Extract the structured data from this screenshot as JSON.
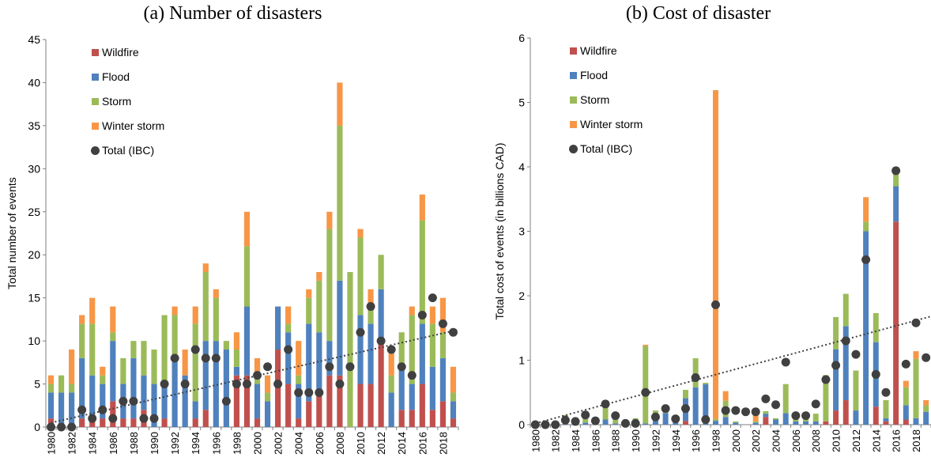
{
  "colors": {
    "wildfire": "#c0504d",
    "flood": "#4f81bd",
    "storm": "#9bbb59",
    "winter_storm": "#f79646",
    "total": "#404040"
  },
  "chart_data": [
    {
      "type": "bar",
      "stacked": true,
      "title": "(a) Number of disasters",
      "xlabel": "",
      "ylabel": "Total number of events",
      "ylim": [
        0,
        45
      ],
      "yticks": [
        0,
        5,
        10,
        15,
        20,
        25,
        30,
        35,
        40,
        45
      ],
      "categories": [
        "1980",
        "1981",
        "1982",
        "1983",
        "1984",
        "1985",
        "1986",
        "1987",
        "1988",
        "1989",
        "1990",
        "1991",
        "1992",
        "1993",
        "1994",
        "1995",
        "1996",
        "1997",
        "1998",
        "1999",
        "2000",
        "2001",
        "2002",
        "2003",
        "2004",
        "2005",
        "2006",
        "2007",
        "2008",
        "2009",
        "2010",
        "2011",
        "2012",
        "2013",
        "2014",
        "2015",
        "2016",
        "2017",
        "2018",
        "2019"
      ],
      "tick_labels": [
        "1980",
        "1982",
        "1984",
        "1986",
        "1988",
        "1990",
        "1992",
        "1994",
        "1996",
        "1998",
        "2000",
        "2002",
        "2004",
        "2006",
        "2008",
        "2010",
        "2012",
        "2014",
        "2016",
        "2018"
      ],
      "legend_position": "top-left",
      "series": [
        {
          "name": "Wildfire",
          "key": "wildfire",
          "values": [
            1,
            0,
            0,
            1,
            1,
            1,
            3,
            1,
            1,
            2,
            0,
            1,
            0,
            0,
            1,
            2,
            0,
            0,
            6,
            6,
            1,
            0,
            9,
            5,
            1,
            3,
            4,
            6,
            6,
            0,
            5,
            5,
            10,
            0,
            2,
            2,
            5,
            2,
            3,
            1
          ]
        },
        {
          "name": "Flood",
          "key": "flood",
          "values": [
            3,
            4,
            4,
            7,
            5,
            4,
            7,
            4,
            7,
            4,
            5,
            4,
            8,
            6,
            2,
            8,
            10,
            9,
            1,
            8,
            4,
            3,
            5,
            6,
            4,
            9,
            7,
            4,
            11,
            0,
            8,
            7,
            6,
            4,
            5,
            3,
            7,
            5,
            5,
            2
          ]
        },
        {
          "name": "Storm",
          "key": "storm",
          "values": [
            1,
            2,
            1,
            4,
            6,
            1,
            1,
            3,
            2,
            4,
            4,
            8,
            5,
            0,
            9,
            8,
            5,
            1,
            2,
            7,
            1,
            1,
            0,
            1,
            1,
            3,
            6,
            13,
            18,
            18,
            9,
            2,
            4,
            2,
            4,
            8,
            12,
            5,
            3,
            1
          ]
        },
        {
          "name": "Winter storm",
          "key": "winter_storm",
          "values": [
            1,
            0,
            4,
            1,
            3,
            1,
            3,
            0,
            0,
            0,
            0,
            0,
            1,
            3,
            2,
            1,
            1,
            0,
            2,
            4,
            2,
            2,
            0,
            2,
            4,
            1,
            1,
            2,
            5,
            0,
            1,
            2,
            0,
            3,
            0,
            1,
            3,
            2,
            4,
            3
          ]
        }
      ],
      "total_ibc": {
        "name": "Total (IBC)",
        "values": [
          0,
          0,
          0,
          2,
          1,
          2,
          1,
          3,
          3,
          1,
          1,
          5,
          8,
          5,
          9,
          8,
          8,
          3,
          5,
          5,
          6,
          7,
          5,
          9,
          4,
          4,
          4,
          7,
          5,
          7,
          11,
          14,
          10,
          9,
          7,
          6,
          13,
          15,
          12,
          11
        ]
      },
      "trendline": {
        "start": 0.5,
        "end": 11.3
      }
    },
    {
      "type": "bar",
      "stacked": true,
      "title": "(b) Cost of disaster",
      "xlabel": "",
      "ylabel": "Total cost of events (in billions CAD)",
      "ylim": [
        0,
        6
      ],
      "yticks": [
        0,
        1,
        2,
        3,
        4,
        5,
        6
      ],
      "categories": [
        "1980",
        "1981",
        "1982",
        "1983",
        "1984",
        "1985",
        "1986",
        "1987",
        "1988",
        "1989",
        "1990",
        "1991",
        "1992",
        "1993",
        "1994",
        "1995",
        "1996",
        "1997",
        "1998",
        "1999",
        "2000",
        "2001",
        "2002",
        "2003",
        "2004",
        "2005",
        "2006",
        "2007",
        "2008",
        "2009",
        "2010",
        "2011",
        "2012",
        "2013",
        "2014",
        "2015",
        "2016",
        "2017",
        "2018",
        "2019"
      ],
      "tick_labels": [
        "1980",
        "1982",
        "1984",
        "1986",
        "1988",
        "1990",
        "1992",
        "1994",
        "1996",
        "1998",
        "2000",
        "2002",
        "2004",
        "2006",
        "2008",
        "2010",
        "2012",
        "2014",
        "2016",
        "2018"
      ],
      "legend_position": "top-left",
      "series": [
        {
          "name": "Wildfire",
          "key": "wildfire",
          "values": [
            0,
            0,
            0,
            0,
            0,
            0,
            0,
            0,
            0,
            0,
            0,
            0,
            0,
            0,
            0,
            0.06,
            0,
            0,
            0,
            0,
            0,
            0,
            0,
            0.12,
            0,
            0,
            0,
            0,
            0,
            0.05,
            0.22,
            0.38,
            0,
            0,
            0.28,
            0.05,
            3.15,
            0.08,
            0,
            0
          ]
        },
        {
          "name": "Flood",
          "key": "flood",
          "values": [
            0,
            0,
            0,
            0.12,
            0.02,
            0.03,
            0,
            0.08,
            0.02,
            0.03,
            0.08,
            0.02,
            0.12,
            0.18,
            0.05,
            0.35,
            0.58,
            0.63,
            0.06,
            0.12,
            0.03,
            0,
            0.03,
            0.05,
            0.08,
            0.18,
            0.05,
            0.05,
            0.05,
            0,
            0.95,
            1.15,
            0.22,
            3,
            1,
            0.05,
            0.55,
            0.22,
            0.1,
            0.2
          ]
        },
        {
          "name": "Storm",
          "key": "storm",
          "values": [
            0,
            0,
            0,
            0.03,
            0.02,
            0.08,
            0.05,
            0.3,
            0.12,
            0.02,
            0.02,
            1.2,
            0.1,
            0.12,
            0.02,
            0.13,
            0.45,
            0.02,
            0.03,
            0.25,
            0.02,
            0,
            0.02,
            0.04,
            0.02,
            0.45,
            0.13,
            0.05,
            0.12,
            0.72,
            0.5,
            0.5,
            0.62,
            0.15,
            0.45,
            0.28,
            0.25,
            0.28,
            0.92,
            0.1
          ]
        },
        {
          "name": "Winter storm",
          "key": "winter_storm",
          "values": [
            0,
            0,
            0,
            0,
            0,
            0,
            0,
            0,
            0,
            0,
            0,
            0.02,
            0,
            0,
            0,
            0,
            0,
            0,
            5.1,
            0.15,
            0,
            0,
            0.13,
            0,
            0,
            0,
            0,
            0,
            0,
            0,
            0,
            0,
            0,
            0.38,
            0,
            0,
            0.05,
            0.1,
            0.12,
            0.08
          ]
        }
      ],
      "total_ibc": {
        "name": "Total (IBC)",
        "values": [
          0,
          0,
          0,
          0.07,
          0.05,
          0.15,
          0.06,
          0.32,
          0.14,
          0.02,
          0.02,
          0.5,
          0.12,
          0.25,
          0.09,
          0.25,
          0.73,
          0.08,
          1.86,
          0.22,
          0.22,
          0.2,
          0.2,
          0.4,
          0.31,
          0.97,
          0.14,
          0.14,
          0.32,
          0.7,
          0.92,
          1.3,
          1.09,
          2.56,
          0.78,
          0.5,
          3.94,
          0.94,
          1.58,
          1.04
        ]
      },
      "trendline": {
        "start": 0.02,
        "end": 1.68
      }
    }
  ]
}
